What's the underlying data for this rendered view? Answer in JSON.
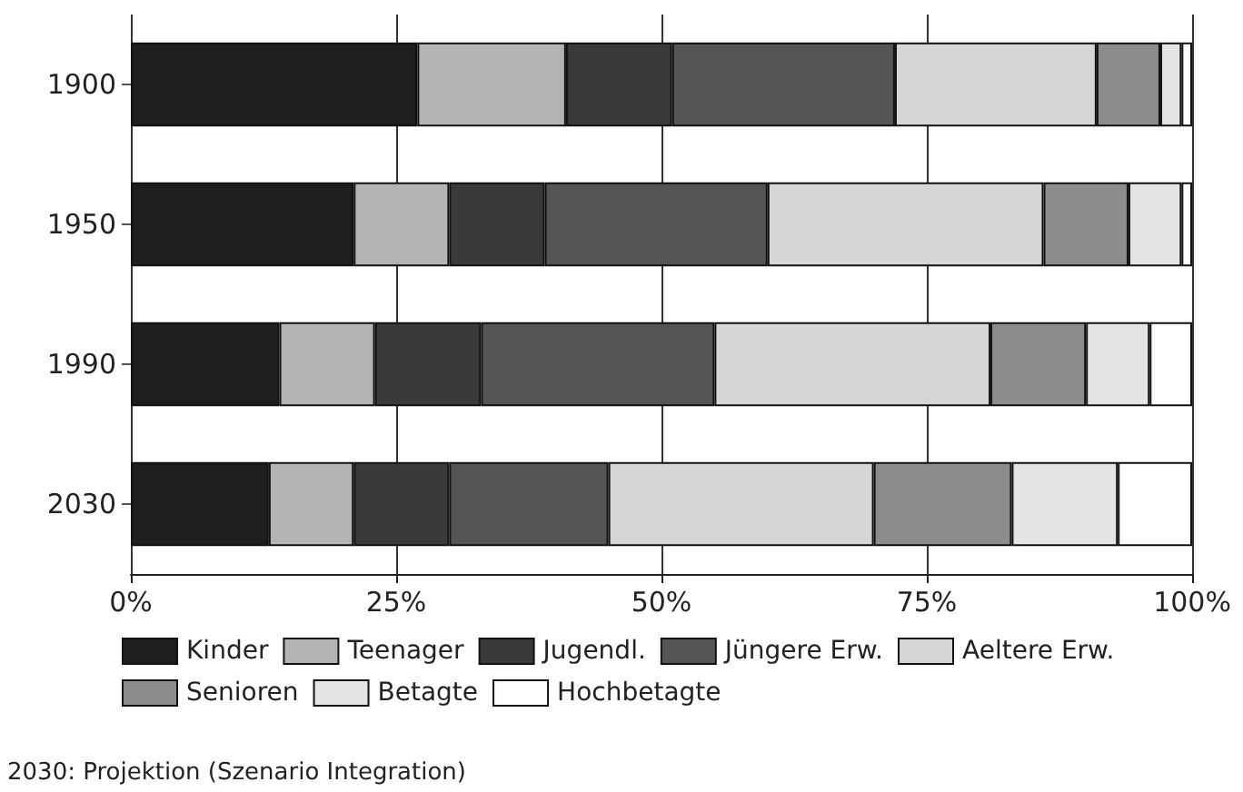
{
  "chart_data": {
    "type": "bar",
    "orientation": "horizontal",
    "stacked": true,
    "categories": [
      "1900",
      "1950",
      "1990",
      "2030"
    ],
    "series": [
      {
        "name": "Kinder",
        "color": "#1e1e1e",
        "values": [
          27,
          21,
          14,
          13
        ]
      },
      {
        "name": "Teenager",
        "color": "#b4b4b4",
        "values": [
          14,
          9,
          9,
          8
        ]
      },
      {
        "name": "Jugendl.",
        "color": "#3a3a3a",
        "values": [
          10,
          9,
          10,
          9
        ]
      },
      {
        "name": "Jüngere Erw.",
        "color": "#555555",
        "values": [
          21,
          21,
          22,
          15
        ]
      },
      {
        "name": "Aeltere Erw.",
        "color": "#d6d6d6",
        "values": [
          19,
          26,
          26,
          25
        ]
      },
      {
        "name": "Senioren",
        "color": "#8c8c8c",
        "values": [
          6,
          8,
          9,
          13
        ]
      },
      {
        "name": "Betagte",
        "color": "#e4e4e4",
        "values": [
          2,
          5,
          6,
          10
        ]
      },
      {
        "name": "Hochbetagte",
        "color": "#ffffff",
        "values": [
          1,
          1,
          4,
          7
        ]
      }
    ],
    "xlim": [
      0,
      100
    ],
    "xticks": [
      {
        "value": 0,
        "label": "0%"
      },
      {
        "value": 25,
        "label": "25%"
      },
      {
        "value": 50,
        "label": "50%"
      },
      {
        "value": 75,
        "label": "75%"
      },
      {
        "value": 100,
        "label": "100%"
      }
    ],
    "grid": "x",
    "legend": "bottom",
    "annotations": [
      "2030: Projektion (Szenario Integration)"
    ]
  }
}
